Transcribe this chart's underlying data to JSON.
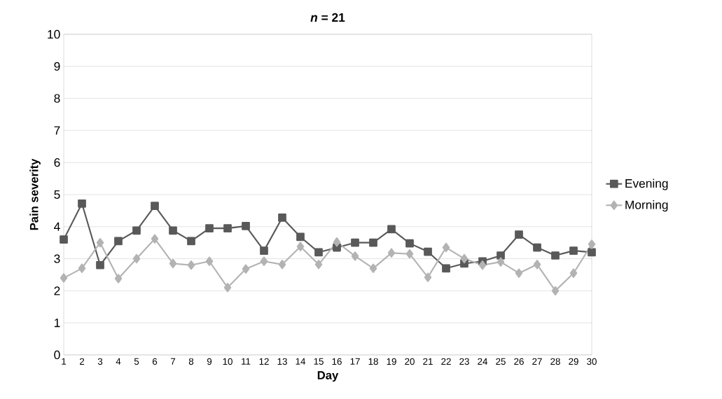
{
  "chart_data": {
    "type": "line",
    "title": "***n* = 21**",
    "xlabel": "Day",
    "ylabel": "Pain severity",
    "categories": [
      "1",
      "2",
      "3",
      "4",
      "5",
      "6",
      "7",
      "8",
      "9",
      "10",
      "11",
      "12",
      "13",
      "14",
      "15",
      "16",
      "17",
      "18",
      "19",
      "20",
      "21",
      "22",
      "23",
      "24",
      "25",
      "26",
      "27",
      "28",
      "29",
      "30"
    ],
    "series": [
      {
        "name": "Evening",
        "color": "#595959",
        "marker": "square",
        "values": [
          3.6,
          4.72,
          2.8,
          3.55,
          3.88,
          4.65,
          3.88,
          3.55,
          3.95,
          3.95,
          4.02,
          3.25,
          4.28,
          3.68,
          3.2,
          3.35,
          3.5,
          3.5,
          3.92,
          3.48,
          3.22,
          2.7,
          2.85,
          2.92,
          3.1,
          3.75,
          3.35,
          3.1,
          3.25,
          3.2
        ]
      },
      {
        "name": "Morning",
        "color": "#b3b3b3",
        "marker": "diamond",
        "values": [
          2.4,
          2.7,
          3.5,
          2.38,
          3.0,
          3.62,
          2.85,
          2.8,
          2.92,
          2.1,
          2.68,
          2.92,
          2.82,
          3.38,
          2.82,
          3.52,
          3.08,
          2.7,
          3.18,
          3.15,
          2.42,
          3.35,
          3.0,
          2.8,
          2.9,
          2.55,
          2.82,
          2.0,
          2.55,
          3.45
        ]
      }
    ],
    "ylim": [
      0,
      10
    ],
    "yticks": [
      0,
      1,
      2,
      3,
      4,
      5,
      6,
      7,
      8,
      9,
      10
    ],
    "grid": "y",
    "legend": "right",
    "line_style": "solid"
  }
}
